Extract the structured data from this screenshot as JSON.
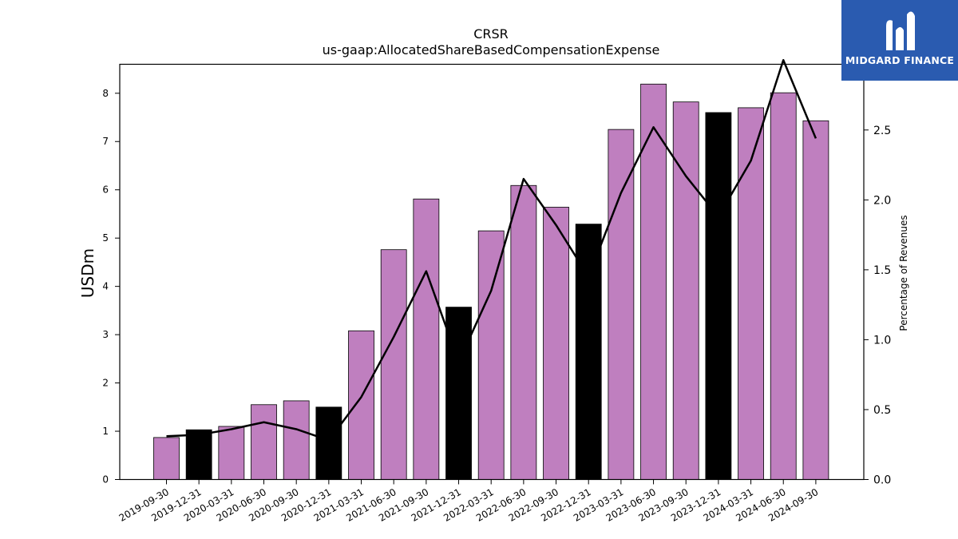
{
  "chart_data": {
    "type": "bar",
    "title": "CRSR",
    "subtitle": "us-gaap:AllocatedShareBasedCompensationExpense",
    "ylabel": "USDm",
    "y2label": "Percentage of Revenues",
    "ylim": [
      0,
      8.6
    ],
    "y2lim": [
      0,
      2.97
    ],
    "yticks": [
      0,
      1,
      2,
      3,
      4,
      5,
      6,
      7,
      8
    ],
    "y2ticks": [
      0.0,
      0.5,
      1.0,
      1.5,
      2.0,
      2.5
    ],
    "categories": [
      "2019-09-30",
      "2019-12-31",
      "2020-03-31",
      "2020-06-30",
      "2020-09-30",
      "2020-12-31",
      "2021-03-31",
      "2021-06-30",
      "2021-09-30",
      "2021-12-31",
      "2022-03-31",
      "2022-06-30",
      "2022-09-30",
      "2022-12-31",
      "2023-03-31",
      "2023-06-30",
      "2023-09-30",
      "2023-12-31",
      "2024-03-31",
      "2024-06-30",
      "2024-09-30"
    ],
    "values": [
      0.87,
      1.03,
      1.1,
      1.55,
      1.63,
      1.5,
      3.08,
      4.76,
      5.81,
      3.57,
      5.15,
      6.09,
      5.64,
      5.29,
      7.25,
      8.19,
      7.82,
      7.6,
      7.7,
      8.01,
      7.43
    ],
    "quarter_end_highlight": [
      false,
      true,
      false,
      false,
      false,
      true,
      false,
      false,
      false,
      true,
      false,
      false,
      false,
      true,
      false,
      false,
      false,
      true,
      false,
      false,
      false
    ],
    "line_series": {
      "values": [
        0.31,
        0.32,
        0.36,
        0.41,
        0.36,
        0.28,
        0.59,
        1.02,
        1.49,
        0.84,
        1.35,
        2.15,
        1.82,
        1.45,
        2.05,
        2.52,
        2.17,
        1.88,
        2.28,
        3.0,
        2.44
      ]
    },
    "colors": {
      "bar": "#bf7fbf",
      "highlight_bar": "#000000",
      "line": "#000000"
    },
    "grid": false,
    "legend": "none"
  },
  "branding": {
    "name": "MIDGARD FINANCE",
    "background": "#2a5bb0"
  }
}
